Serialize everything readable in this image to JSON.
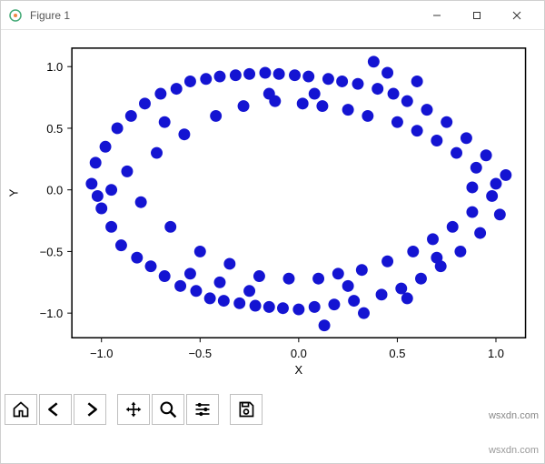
{
  "window": {
    "title": "Figure 1",
    "controls": {
      "minimize": "—",
      "maximize": "▢",
      "close": "✕"
    }
  },
  "watermark_top": "wsxdn.com",
  "watermark_bottom": "wsxdn.com",
  "toolbar": {
    "home": "home-icon",
    "back": "back-icon",
    "forward": "forward-icon",
    "pan": "pan-icon",
    "zoom": "zoom-icon",
    "configure": "configure-icon",
    "save": "save-icon"
  },
  "chart": {
    "type": "scatter",
    "xlabel": "X",
    "ylabel": "Y",
    "xlim": [
      -1.15,
      1.15
    ],
    "ylim": [
      -1.2,
      1.15
    ],
    "xticks": [
      -1.0,
      -0.5,
      0.0,
      0.5,
      1.0
    ],
    "yticks": [
      -1.0,
      -0.5,
      0.0,
      0.5,
      1.0
    ],
    "xtick_labels": [
      "−1.0",
      "−0.5",
      "0.0",
      "0.5",
      "1.0"
    ],
    "ytick_labels": [
      "−1.0",
      "−0.5",
      "0.0",
      "0.5",
      "1.0"
    ],
    "marker_color": "#1414d2",
    "marker_radius": 6.5,
    "background_color": "#ffffff",
    "axis_color": "#000000",
    "tick_fontsize": 13,
    "label_fontsize": 13,
    "points": [
      [
        -1.05,
        0.05
      ],
      [
        -1.03,
        0.22
      ],
      [
        -1.0,
        -0.15
      ],
      [
        -1.02,
        -0.05
      ],
      [
        -0.98,
        0.35
      ],
      [
        -0.95,
        -0.3
      ],
      [
        -0.92,
        0.5
      ],
      [
        -0.9,
        -0.45
      ],
      [
        -0.87,
        0.15
      ],
      [
        -0.85,
        0.6
      ],
      [
        -0.82,
        -0.55
      ],
      [
        -0.8,
        -0.1
      ],
      [
        -0.78,
        0.7
      ],
      [
        -0.75,
        -0.62
      ],
      [
        -0.72,
        0.3
      ],
      [
        -0.7,
        0.78
      ],
      [
        -0.68,
        -0.7
      ],
      [
        -0.65,
        -0.3
      ],
      [
        -0.62,
        0.82
      ],
      [
        -0.6,
        -0.78
      ],
      [
        -0.58,
        0.45
      ],
      [
        -0.55,
        0.88
      ],
      [
        -0.52,
        -0.82
      ],
      [
        -0.5,
        -0.5
      ],
      [
        -0.47,
        0.9
      ],
      [
        -0.45,
        -0.88
      ],
      [
        -0.42,
        0.6
      ],
      [
        -0.4,
        0.92
      ],
      [
        -0.38,
        -0.9
      ],
      [
        -0.35,
        -0.6
      ],
      [
        -0.32,
        0.93
      ],
      [
        -0.3,
        -0.92
      ],
      [
        -0.28,
        0.68
      ],
      [
        -0.25,
        0.94
      ],
      [
        -0.22,
        -0.94
      ],
      [
        -0.2,
        -0.7
      ],
      [
        -0.17,
        0.95
      ],
      [
        -0.15,
        -0.95
      ],
      [
        -0.12,
        0.72
      ],
      [
        -0.1,
        0.94
      ],
      [
        -0.08,
        -0.96
      ],
      [
        -0.05,
        -0.72
      ],
      [
        -0.02,
        0.93
      ],
      [
        0.0,
        -0.97
      ],
      [
        0.02,
        0.7
      ],
      [
        0.05,
        0.92
      ],
      [
        0.08,
        -0.95
      ],
      [
        0.1,
        -0.72
      ],
      [
        0.12,
        0.68
      ],
      [
        0.13,
        -1.1
      ],
      [
        0.15,
        0.9
      ],
      [
        0.18,
        -0.93
      ],
      [
        0.2,
        -0.68
      ],
      [
        0.22,
        0.88
      ],
      [
        0.25,
        0.65
      ],
      [
        0.28,
        -0.9
      ],
      [
        0.3,
        0.86
      ],
      [
        0.32,
        -0.65
      ],
      [
        0.35,
        0.6
      ],
      [
        0.38,
        1.04
      ],
      [
        0.4,
        0.82
      ],
      [
        0.42,
        -0.85
      ],
      [
        0.45,
        -0.58
      ],
      [
        0.48,
        0.78
      ],
      [
        0.5,
        0.55
      ],
      [
        0.52,
        -0.8
      ],
      [
        0.55,
        0.72
      ],
      [
        0.58,
        -0.5
      ],
      [
        0.6,
        0.48
      ],
      [
        0.62,
        -0.72
      ],
      [
        0.65,
        0.65
      ],
      [
        0.68,
        -0.4
      ],
      [
        0.7,
        0.4
      ],
      [
        0.72,
        -0.62
      ],
      [
        0.75,
        0.55
      ],
      [
        0.78,
        -0.3
      ],
      [
        0.8,
        0.3
      ],
      [
        0.82,
        -0.5
      ],
      [
        0.85,
        0.42
      ],
      [
        0.88,
        -0.18
      ],
      [
        0.9,
        0.18
      ],
      [
        0.92,
        -0.35
      ],
      [
        0.95,
        0.28
      ],
      [
        0.98,
        -0.05
      ],
      [
        1.0,
        0.05
      ],
      [
        1.02,
        -0.2
      ],
      [
        1.05,
        0.12
      ],
      [
        -0.95,
        0.0
      ],
      [
        -0.55,
        -0.68
      ],
      [
        -0.15,
        0.78
      ],
      [
        0.33,
        -1.0
      ],
      [
        0.55,
        -0.88
      ],
      [
        0.25,
        -0.78
      ],
      [
        -0.4,
        -0.75
      ],
      [
        0.7,
        -0.55
      ],
      [
        0.45,
        0.95
      ],
      [
        0.08,
        0.78
      ],
      [
        -0.68,
        0.55
      ],
      [
        0.88,
        0.02
      ],
      [
        -0.25,
        -0.82
      ],
      [
        0.6,
        0.88
      ]
    ]
  }
}
